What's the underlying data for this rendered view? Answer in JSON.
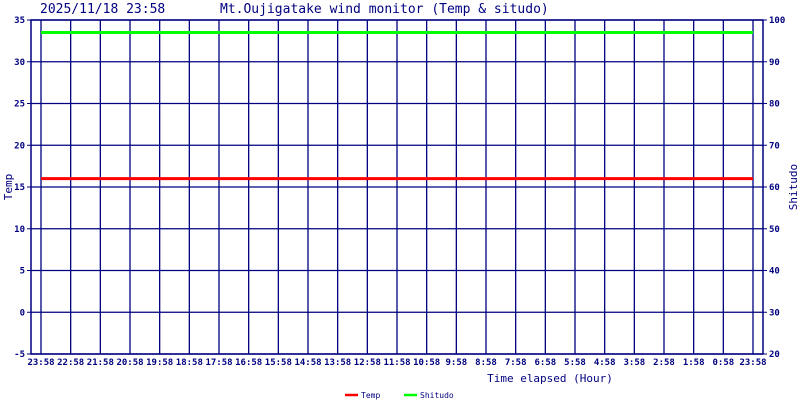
{
  "title": {
    "timestamp": "2025/11/18 23:58",
    "name": "Mt.Oujigatake wind monitor (Temp & situdo)"
  },
  "chart_data": {
    "type": "line",
    "xlabel": "Time elapsed (Hour)",
    "ylabel_left": "Temp",
    "ylabel_right": "Shitudo",
    "x_ticks": [
      "23:58",
      "22:58",
      "21:58",
      "20:58",
      "19:58",
      "18:58",
      "17:58",
      "16:58",
      "15:58",
      "14:58",
      "13:58",
      "12:58",
      "11:58",
      "10:58",
      "9:58",
      "8:58",
      "7:58",
      "6:58",
      "5:58",
      "4:58",
      "3:58",
      "2:58",
      "1:58",
      "0:58",
      "23:58"
    ],
    "ylim_left": [
      -5,
      35
    ],
    "y_ticks_left": [
      -5,
      0,
      5,
      10,
      15,
      20,
      25,
      30,
      35
    ],
    "ylim_right": [
      20,
      100
    ],
    "y_ticks_right": [
      20,
      30,
      40,
      50,
      60,
      70,
      80,
      90,
      100
    ],
    "grid": true,
    "legend_placement": "bottom",
    "series": [
      {
        "name": "Temp",
        "axis": "left",
        "color": "#ff0000",
        "values": [
          16.0,
          16.0,
          16.0,
          16.0,
          16.0,
          16.0,
          16.0,
          16.0,
          16.0,
          16.0,
          16.0,
          16.0,
          16.0,
          16.0,
          16.0,
          16.0,
          16.0,
          16.0,
          16.0,
          16.0,
          16.0,
          16.0,
          16.0,
          16.0,
          16.0
        ]
      },
      {
        "name": "Shitudo",
        "axis": "right",
        "color": "#00ff00",
        "values": [
          97,
          97,
          97,
          97,
          97,
          97,
          97,
          97,
          97,
          97,
          97,
          97,
          97,
          97,
          97,
          97,
          97,
          97,
          97,
          97,
          97,
          97,
          97,
          97,
          97
        ]
      }
    ]
  },
  "colors": {
    "axis": "#000080",
    "grid": "#000080"
  }
}
